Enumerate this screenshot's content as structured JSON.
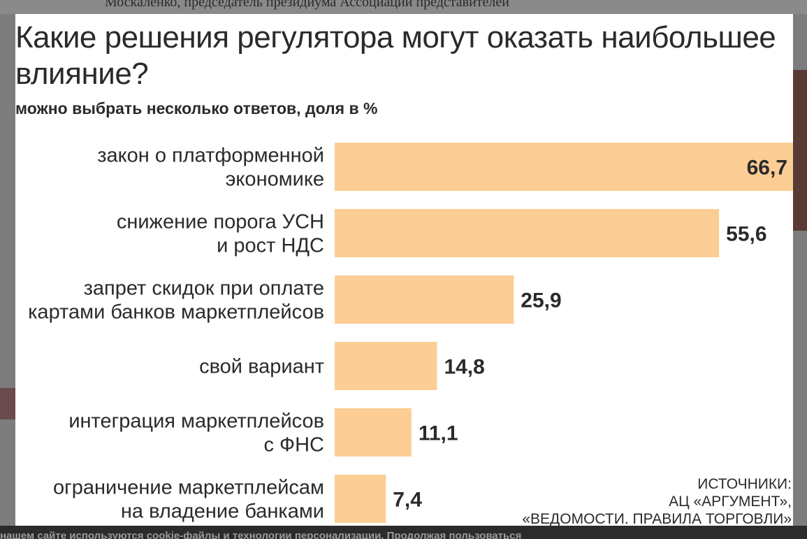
{
  "background": {
    "top_text": "Москаленко, председатель президиума Ассоциации представителей",
    "bottom_text": "нашем сайте используются cookie-файлы и технологии персонализации. Продолжая пользоваться"
  },
  "chart_data": {
    "type": "bar",
    "orientation": "horizontal",
    "title": "Какие решения регулятора могут оказать наибольшее влияние?",
    "subtitle": "можно выбрать несколько ответов, доля в %",
    "categories": [
      [
        "закон о платформенной",
        "экономике"
      ],
      [
        "снижение порога УСН",
        "и рост НДС"
      ],
      [
        "запрет скидок при оплате",
        "картами банков маркетплейсов"
      ],
      [
        "свой вариант"
      ],
      [
        "интеграция маркетплейсов",
        "с ФНС"
      ],
      [
        "ограничение маркетплейсам",
        "на владение банками"
      ]
    ],
    "values": [
      66.7,
      55.6,
      25.9,
      14.8,
      11.1,
      7.4
    ],
    "value_labels": [
      "66,7",
      "55,6",
      "25,9",
      "14,8",
      "11,1",
      "7,4"
    ],
    "bar_color": "#fccd94",
    "text_color": "#2a2a2a"
  },
  "source": {
    "lines": [
      "ИСТОЧНИКИ:",
      "АЦ «АРГУМЕНТ»,",
      "«ВЕДОМОСТИ. ПРАВИЛА ТОРГОВЛИ»"
    ]
  }
}
